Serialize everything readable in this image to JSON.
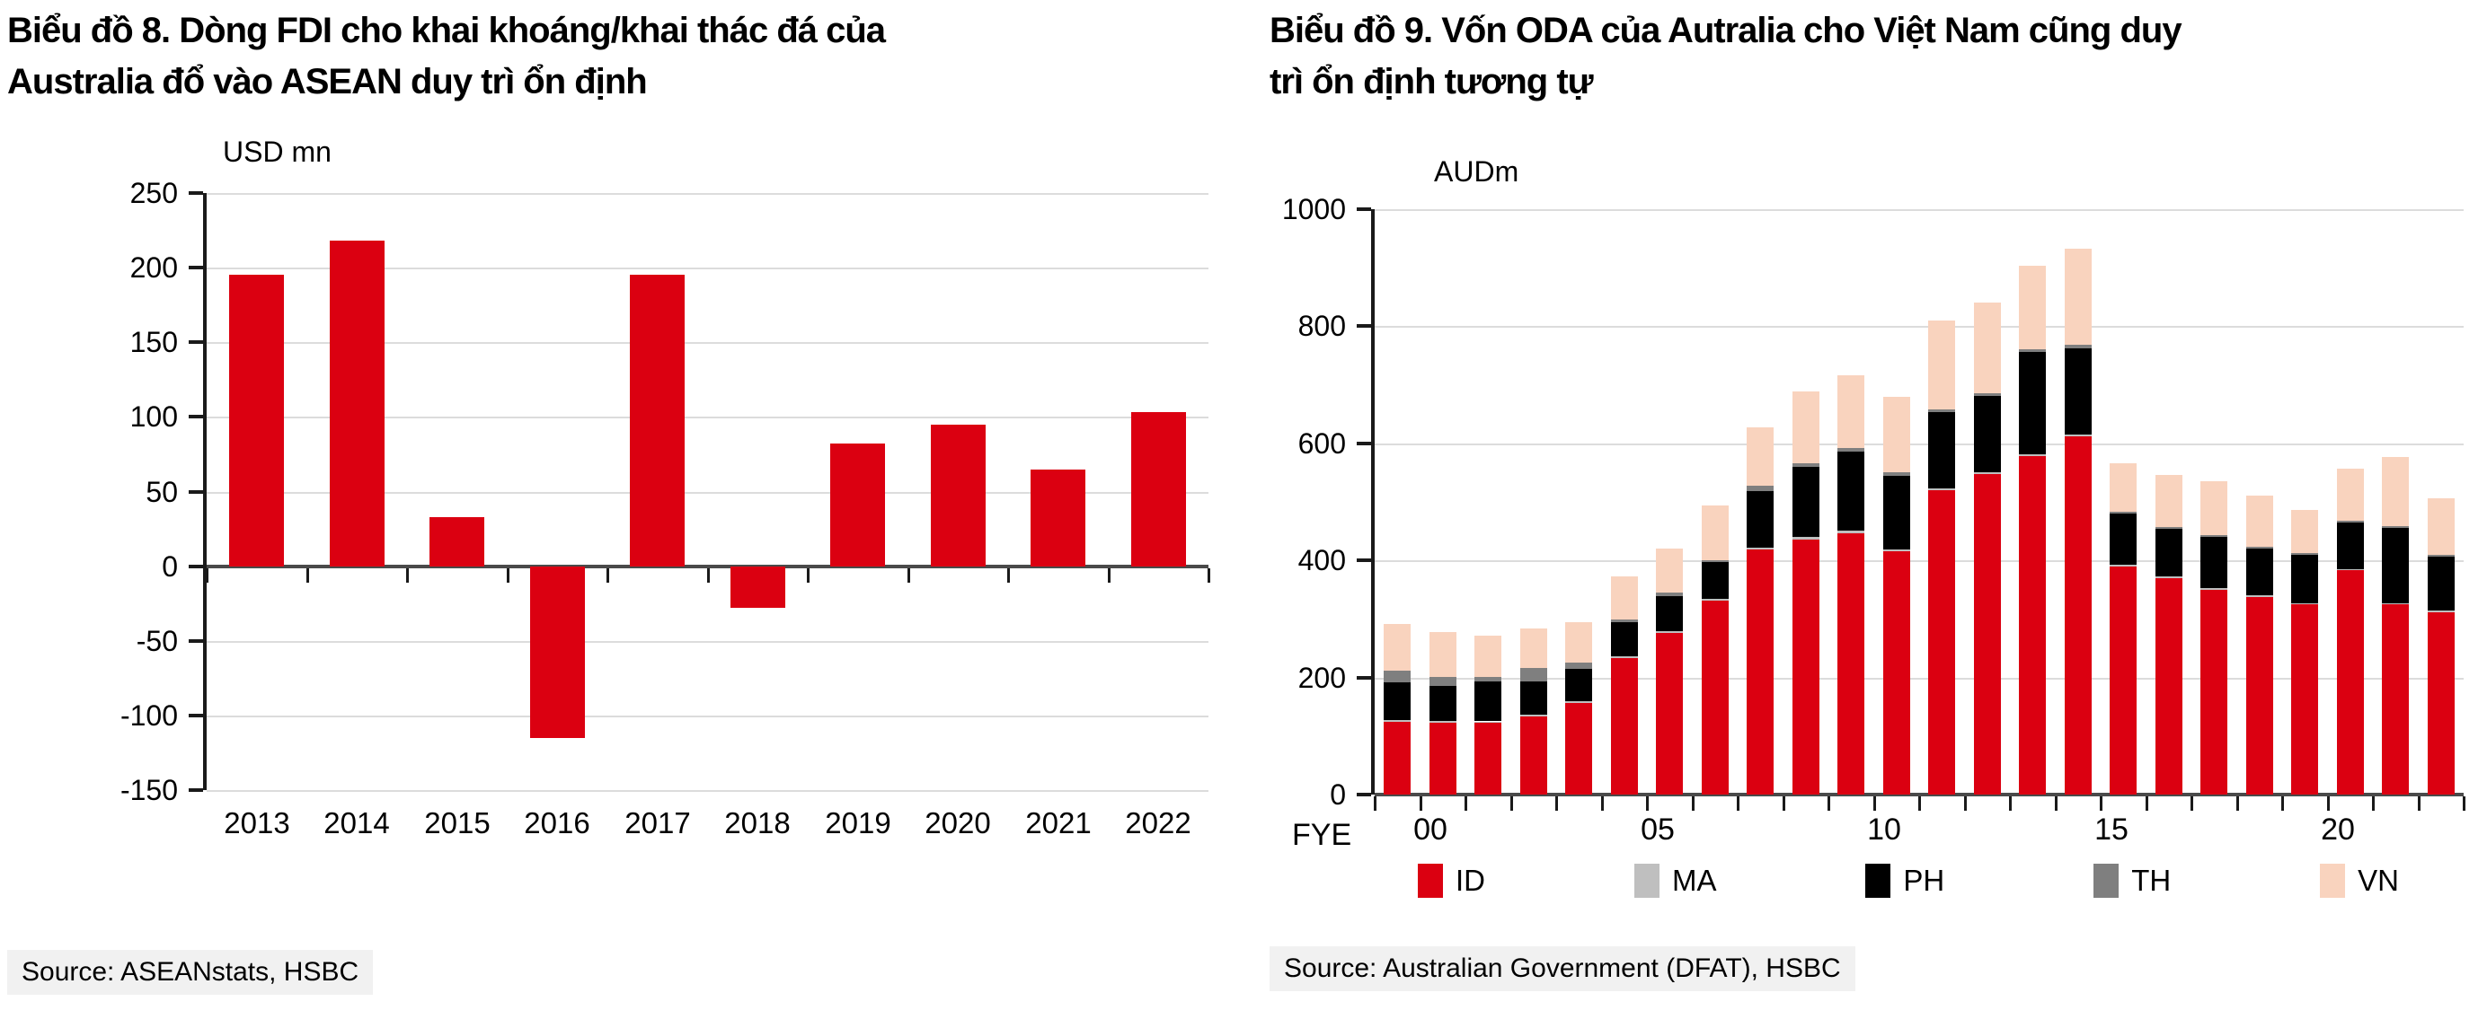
{
  "chart_data": [
    {
      "type": "bar",
      "title": "Biểu đồ 8. Dòng FDI cho khai khoáng/khai thác đá của Australia đổ vào ASEAN duy trì ổn định",
      "title_lines": [
        "Biểu đồ 8. Dòng FDI cho khai khoáng/khai thác đá của",
        "Australia đổ vào ASEAN duy trì ổn định"
      ],
      "unit": "USD mn",
      "ylabel": "USD mn",
      "xlabel": "",
      "source": "Source: ASEANstats, HSBC",
      "categories": [
        "2013",
        "2014",
        "2015",
        "2016",
        "2017",
        "2018",
        "2019",
        "2020",
        "2021",
        "2022"
      ],
      "values": [
        195,
        218,
        33,
        -115,
        195,
        -28,
        82,
        95,
        65,
        103
      ],
      "bar_color": "#DB0011",
      "ylim": [
        -150,
        250
      ],
      "ytick_step": 50,
      "grid": true,
      "legend_position": "none"
    },
    {
      "type": "stacked-bar",
      "title": "Biểu đồ 9. Vốn ODA của Autralia cho Việt Nam cũng duy trì ổn định tương tự",
      "title_lines": [
        "Biểu đồ 9. Vốn ODA của Autralia cho Việt Nam cũng duy",
        "trì ổn định tương tự"
      ],
      "unit": "AUDm",
      "ylabel": "AUDm",
      "xlabel": "FYE",
      "x_prefix": "FYE",
      "source": "Source: Australian Government (DFAT), HSBC",
      "categories": [
        "00",
        "01",
        "02",
        "03",
        "04",
        "05",
        "06",
        "07",
        "08",
        "09",
        "10",
        "11",
        "12",
        "13",
        "14",
        "15",
        "16",
        "17",
        "18",
        "19",
        "20",
        "21",
        "22",
        "23"
      ],
      "x_tick_labels": [
        {
          "index": 0,
          "label": "00"
        },
        {
          "index": 5,
          "label": "05"
        },
        {
          "index": 10,
          "label": "10"
        },
        {
          "index": 15,
          "label": "15"
        },
        {
          "index": 20,
          "label": "20"
        }
      ],
      "series": [
        {
          "name": "ID",
          "color": "#DB0011",
          "values": [
            124,
            122,
            122,
            133,
            157,
            233,
            276,
            332,
            418,
            436,
            446,
            415,
            520,
            548,
            578,
            612,
            390,
            370,
            350,
            338,
            325,
            383,
            325,
            312
          ]
        },
        {
          "name": "MA",
          "color": "#BFBFBF",
          "values": [
            4,
            4,
            3,
            3,
            3,
            3,
            3,
            3,
            4,
            4,
            5,
            4,
            3,
            3,
            3,
            3,
            2,
            2,
            2,
            2,
            2,
            2,
            2,
            2
          ]
        },
        {
          "name": "PH",
          "color": "#000000",
          "values": [
            64,
            60,
            68,
            58,
            55,
            58,
            60,
            62,
            97,
            120,
            135,
            125,
            130,
            130,
            175,
            148,
            88,
            82,
            88,
            80,
            82,
            80,
            128,
            92
          ]
        },
        {
          "name": "TH",
          "color": "#7F7F7F",
          "values": [
            20,
            15,
            8,
            22,
            10,
            5,
            6,
            4,
            8,
            6,
            6,
            6,
            5,
            5,
            5,
            5,
            3,
            3,
            3,
            3,
            3,
            3,
            3,
            3
          ]
        },
        {
          "name": "VN",
          "color": "#F9D3BE",
          "values": [
            79,
            77,
            71,
            68,
            70,
            74,
            75,
            93,
            100,
            123,
            124,
            130,
            152,
            155,
            142,
            165,
            83,
            89,
            92,
            88,
            74,
            88,
            118,
            97
          ]
        }
      ],
      "ylim": [
        0,
        1000
      ],
      "ytick_step": 200,
      "grid": true,
      "legend_position": "bottom"
    }
  ]
}
